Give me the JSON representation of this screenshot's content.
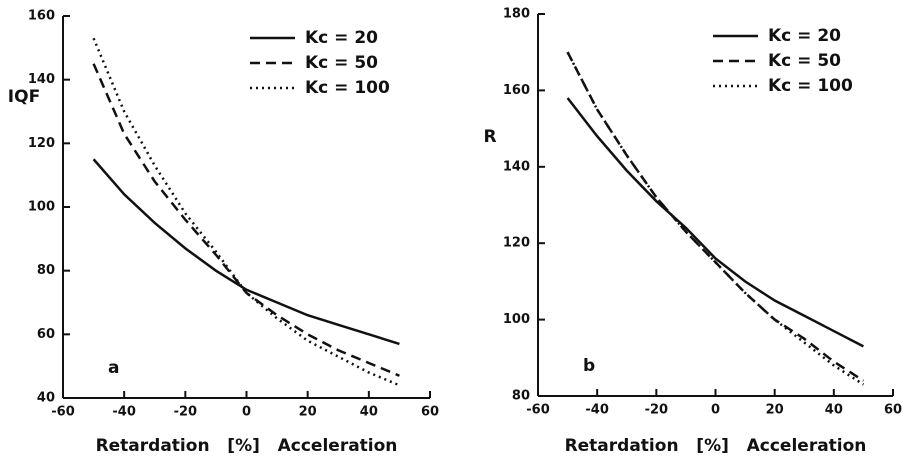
{
  "chart_data": [
    {
      "type": "line",
      "panel_label": "a",
      "ylabel": "IQF",
      "xlabel": "Retardation   [%]   Acceleration",
      "x": [
        -50,
        -40,
        -30,
        -20,
        -10,
        0,
        10,
        20,
        30,
        40,
        50
      ],
      "series": [
        {
          "name": "Kc = 20",
          "color": "#111111",
          "dash": "solid",
          "values": [
            115,
            104,
            95,
            87,
            80,
            74,
            70,
            66,
            63,
            60,
            57
          ]
        },
        {
          "name": "Kc = 50",
          "color": "#111111",
          "dash": "dashed",
          "values": [
            145,
            123,
            108,
            96,
            85,
            73,
            66,
            60,
            55,
            51,
            47
          ]
        },
        {
          "name": "Kc = 100",
          "color": "#111111",
          "dash": "dotted",
          "values": [
            153,
            130,
            113,
            98,
            86,
            73,
            65,
            58,
            53,
            48,
            44
          ]
        }
      ],
      "xlim": [
        -60,
        60
      ],
      "xticks": [
        -60,
        -40,
        -20,
        0,
        20,
        40,
        60
      ],
      "ylim": [
        40,
        160
      ],
      "yticks": [
        40,
        60,
        80,
        100,
        120,
        140,
        160
      ],
      "legend": "upper right"
    },
    {
      "type": "line",
      "panel_label": "b",
      "ylabel": "R",
      "xlabel": "Retardation   [%]   Acceleration",
      "x": [
        -50,
        -40,
        -30,
        -20,
        -10,
        0,
        10,
        20,
        30,
        40,
        50
      ],
      "series": [
        {
          "name": "Kc = 20",
          "color": "#111111",
          "dash": "solid",
          "values": [
            158,
            148,
            139,
            131,
            124,
            116,
            110,
            105,
            101,
            97,
            93
          ]
        },
        {
          "name": "Kc = 50",
          "color": "#111111",
          "dash": "dashed",
          "values": [
            170,
            155,
            143,
            132,
            123,
            115,
            107,
            100,
            95,
            89,
            84
          ]
        },
        {
          "name": "Kc = 100",
          "color": "#111111",
          "dash": "dotted",
          "values": [
            170,
            155,
            143,
            132,
            123,
            115,
            107,
            100,
            94,
            88,
            83
          ]
        }
      ],
      "xlim": [
        -60,
        60
      ],
      "xticks": [
        -60,
        -40,
        -20,
        0,
        20,
        40,
        60
      ],
      "ylim": [
        80,
        180
      ],
      "yticks": [
        80,
        100,
        120,
        140,
        160,
        180
      ],
      "legend": "upper right"
    }
  ]
}
